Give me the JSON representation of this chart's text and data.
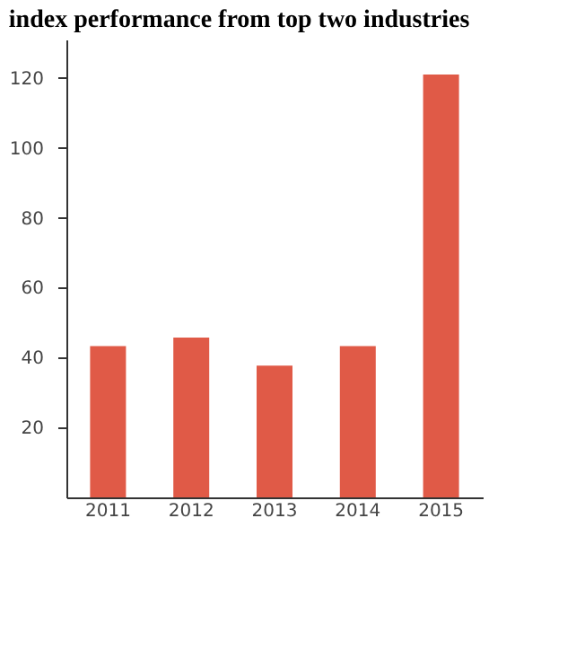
{
  "chart_data": {
    "type": "bar",
    "title": "index performance from top two industries",
    "categories": [
      "2011",
      "2012",
      "2013",
      "2014",
      "2015"
    ],
    "values": [
      43.3,
      45.7,
      37.7,
      43.3,
      121
    ],
    "color": "#e05a47",
    "ylim": [
      0,
      131
    ],
    "yticks": [
      20,
      40,
      60,
      80,
      100,
      120
    ],
    "grid": false
  }
}
